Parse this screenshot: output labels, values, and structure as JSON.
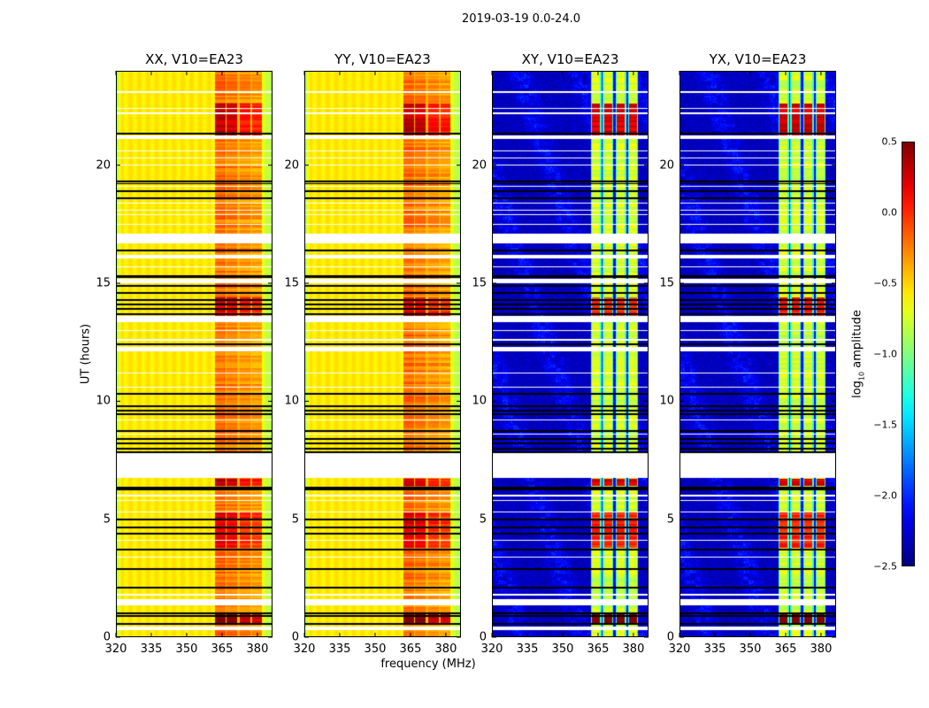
{
  "title": "2019-03-19 0.0-24.0",
  "chart_data": {
    "type": "heatmap",
    "title": "2019-03-19 0.0-24.0",
    "xlabel": "frequency (MHz)",
    "ylabel": "UT (hours)",
    "xlim": [
      320,
      386.4
    ],
    "ylim": [
      0,
      24
    ],
    "xticks": [
      "320",
      "335",
      "350",
      "365",
      "380"
    ],
    "xtick_values": [
      320,
      335,
      350,
      365,
      380
    ],
    "yticks": [
      "0",
      "5",
      "10",
      "15",
      "20"
    ],
    "ytick_values": [
      0,
      5,
      10,
      15,
      20
    ],
    "colormap": "jet",
    "colorbar": {
      "label": "log10 amplitude",
      "label_main": "log",
      "label_sub": "10",
      "label_rest": " amplitude",
      "range": [
        -2.5,
        0.5
      ],
      "ticks": [
        "0.5",
        "0.0",
        "−0.5",
        "−1.0",
        "−1.5",
        "−2.0",
        "−2.5"
      ],
      "tick_values": [
        0.5,
        0.0,
        -0.5,
        -1.0,
        -1.5,
        -2.0,
        -2.5
      ]
    },
    "panels": [
      {
        "title": "XX, V10=EA23",
        "kind": "parallel"
      },
      {
        "title": "YY, V10=EA23",
        "kind": "parallel"
      },
      {
        "title": "XY, V10=EA23",
        "kind": "cross"
      },
      {
        "title": "YX, V10=EA23",
        "kind": "cross"
      }
    ],
    "bands_mhz": [
      [
        362,
        366.4
      ],
      [
        367,
        371.5
      ],
      [
        372.4,
        377
      ],
      [
        377.6,
        382
      ]
    ],
    "flagged_gaps_hours": [
      [
        6.75,
        7.8
      ],
      [
        16.7,
        17.1
      ],
      [
        16.05,
        16.2
      ],
      [
        15.0,
        15.2
      ],
      [
        13.35,
        13.6
      ],
      [
        12.1,
        12.3
      ],
      [
        21.1,
        21.25
      ],
      [
        1.35,
        1.6
      ],
      [
        0.3,
        0.45
      ]
    ],
    "black_rows_hours": [
      21.35,
      19.3,
      19.22,
      18.9,
      18.6,
      16.4,
      15.25,
      15.32,
      14.9,
      14.6,
      14.3,
      14.1,
      13.9,
      13.7,
      12.4,
      10.3,
      9.8,
      9.6,
      9.45,
      8.75,
      8.4,
      8.2,
      8.0,
      7.85,
      6.35,
      6.25,
      5.0,
      4.65,
      4.4,
      3.7,
      2.9,
      2.1,
      1.0,
      0.9,
      0.55
    ],
    "white_rows_hours": [
      23.1,
      22.4,
      22.2,
      20.6,
      20.3,
      20.0,
      19.1,
      18.4,
      18.1,
      17.9,
      17.5,
      15.7,
      13.0,
      12.6,
      11.2,
      10.6,
      9.2,
      8.6,
      6.0,
      5.8,
      5.3,
      4.1,
      3.4,
      1.8
    ],
    "enhanced_hours": [
      [
        21.2,
        22.6,
        0.45
      ],
      [
        13.6,
        14.4,
        0.35
      ],
      [
        3.8,
        5.3,
        0.35
      ],
      [
        0.6,
        1.0,
        0.7
      ],
      [
        6.4,
        6.7,
        0.45
      ]
    ]
  }
}
